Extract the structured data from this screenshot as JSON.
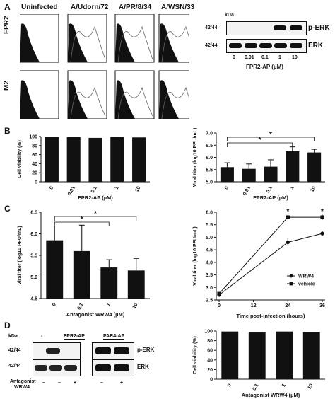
{
  "panels": {
    "A": "A",
    "B": "B",
    "C": "C",
    "D": "D"
  },
  "flow": {
    "columns": [
      "Uninfected",
      "A/Udorn/72",
      "A/PR/8/34",
      "A/WSN/33"
    ],
    "rows": [
      "FPR2",
      "M2"
    ]
  },
  "blotA": {
    "kda": "kDa",
    "mw": "42/44",
    "bands": [
      "p-ERK",
      "ERK"
    ],
    "doses": [
      "0",
      "0.01",
      "0.1",
      "1",
      "10"
    ],
    "xlabel": "FPR2-AP (µM)"
  },
  "blotD": {
    "kda": "kDa",
    "mw": "42/44",
    "bands": [
      "p-ERK",
      "ERK"
    ],
    "groups": [
      "-",
      "FPR2-AP",
      "PAR4-AP"
    ],
    "row_label": "Antagonist WRW4",
    "signs": [
      "–",
      "–",
      "+",
      "–",
      "+"
    ]
  },
  "chart_data": [
    {
      "id": "B-left",
      "type": "bar",
      "categories": [
        "0",
        "0.01",
        "0.1",
        "1",
        "10"
      ],
      "values": [
        99,
        99,
        97,
        99,
        98
      ],
      "xlabel": "FPR2-AP (µM)",
      "ylabel": "Cell viability (%)",
      "ylim": [
        0,
        100
      ],
      "yticks": [
        0,
        20,
        40,
        60,
        80,
        100
      ]
    },
    {
      "id": "B-right",
      "type": "bar",
      "categories": [
        "0",
        "0.01",
        "0.1",
        "1",
        "10"
      ],
      "values": [
        5.6,
        5.53,
        5.62,
        6.25,
        6.2
      ],
      "errors": [
        0.18,
        0.2,
        0.28,
        0.18,
        0.13
      ],
      "xlabel": "FPR2-AP (µM)",
      "ylabel": "Viral titer (log10 PFU/mL)",
      "ylim": [
        5.0,
        7.0
      ],
      "yticks": [
        "5.0",
        "5.5",
        "6.0",
        "6.5",
        "7.0"
      ],
      "sig": [
        "*",
        "*"
      ]
    },
    {
      "id": "C-left",
      "type": "bar",
      "categories": [
        "0",
        "0.1",
        "1",
        "10"
      ],
      "values": [
        5.85,
        5.6,
        5.22,
        5.15
      ],
      "errors": [
        0.33,
        0.6,
        0.18,
        0.28
      ],
      "xlabel": "Antagonist WRW4 (µM)",
      "ylabel": "Viral titer (log10 PFU/mL)",
      "ylim": [
        4.5,
        6.5
      ],
      "yticks": [
        "4.5",
        "5.0",
        "5.5",
        "6.0",
        "6.5"
      ],
      "sig": [
        "*",
        "*"
      ]
    },
    {
      "id": "C-right",
      "type": "line",
      "x": [
        0,
        24,
        36
      ],
      "series": [
        {
          "name": "WRW4",
          "values": [
            2.7,
            4.8,
            5.15
          ],
          "errors": [
            0.05,
            0.15,
            0.1
          ]
        },
        {
          "name": "vehicle",
          "values": [
            2.75,
            5.8,
            5.8
          ],
          "errors": [
            0.05,
            0.1,
            0.1
          ]
        }
      ],
      "xlabel": "Time post-infection (hours)",
      "ylabel": "Viral titer (log10 PFU/mL)",
      "ylim": [
        2.5,
        6.0
      ],
      "yticks": [
        "2.5",
        "3.0",
        "3.5",
        "4.0",
        "4.5",
        "5.0",
        "5.5",
        "6.0"
      ],
      "xticks": [
        "0",
        "12",
        "24",
        "36"
      ],
      "sig": [
        "*",
        "*"
      ],
      "legend": "right"
    },
    {
      "id": "D-right",
      "type": "bar",
      "categories": [
        "0",
        "0.1",
        "1",
        "10"
      ],
      "values": [
        99,
        97,
        99,
        98
      ],
      "xlabel": "Antagonist WRW4 (µM)",
      "ylabel": "Cell viability (%)",
      "ylim": [
        0,
        100
      ],
      "yticks": [
        0,
        20,
        40,
        60,
        80,
        100
      ]
    }
  ]
}
